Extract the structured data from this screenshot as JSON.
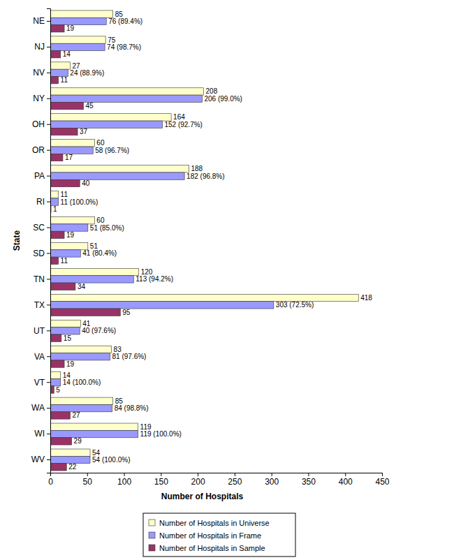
{
  "chart_data": {
    "type": "bar",
    "orientation": "horizontal",
    "x_label": "Number of Hospitals",
    "y_label": "State",
    "categories": [
      "NE",
      "NJ",
      "NV",
      "NY",
      "OH",
      "OR",
      "PA",
      "RI",
      "SC",
      "SD",
      "TN",
      "TX",
      "UT",
      "VA",
      "VT",
      "WA",
      "WI",
      "WV"
    ],
    "series": [
      {
        "name": "Number of Hospitals in Universe",
        "color": "#ffffcc",
        "values": [
          85,
          75,
          27,
          208,
          164,
          60,
          188,
          11,
          60,
          51,
          120,
          418,
          41,
          83,
          14,
          85,
          119,
          54
        ]
      },
      {
        "name": "Number of Hospitals in Frame",
        "color": "#9999ff",
        "values": [
          76,
          74,
          24,
          206,
          152,
          58,
          182,
          11,
          51,
          41,
          113,
          303,
          40,
          81,
          14,
          84,
          119,
          54
        ],
        "value_labels": [
          "76 (89.4%)",
          "74 (98.7%)",
          "24 (88.9%)",
          "206 (99.0%)",
          "152 (92.7%)",
          "58 (96.7%)",
          "182 (96.8%)",
          "11 (100.0%)",
          "51 (85.0%)",
          "41 (80.4%)",
          "113 (94.2%)",
          "303 (72.5%)",
          "40 (97.6%)",
          "81 (97.6%)",
          "14 (100.0%)",
          "84 (98.8%)",
          "119 (100.0%)",
          "54 (100.0%)"
        ]
      },
      {
        "name": "Number of Hospitals in Sample",
        "color": "#993366",
        "values": [
          19,
          14,
          11,
          45,
          37,
          17,
          40,
          1,
          19,
          11,
          34,
          95,
          15,
          19,
          5,
          27,
          29,
          22
        ]
      }
    ],
    "xlim": [
      0,
      450
    ],
    "xticks": [
      0,
      50,
      100,
      150,
      200,
      250,
      300,
      350,
      400,
      450
    ],
    "grid": false,
    "legend": "bottom",
    "data_labels": true
  }
}
